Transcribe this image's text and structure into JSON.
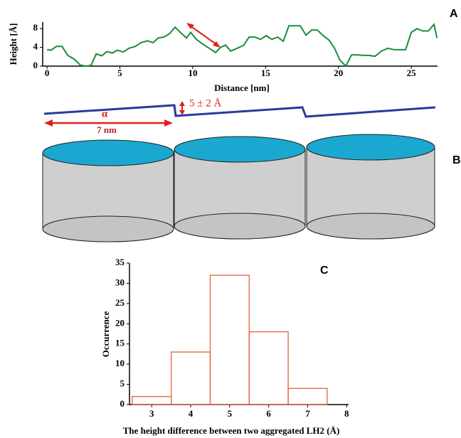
{
  "chart_data": [
    {
      "type": "line",
      "panel_label": "A",
      "xlabel": "Distance [nm]",
      "ylabel": "Height [Å]",
      "xlim": [
        -0.3,
        26.8
      ],
      "ylim": [
        0,
        9.4
      ],
      "xticks": [
        0,
        5,
        10,
        15,
        20,
        25
      ],
      "yticks": [
        0,
        4,
        8
      ],
      "series": [
        {
          "color": "#1a8c3a",
          "x": [
            0,
            0.29,
            0.63,
            1.03,
            1.42,
            1.86,
            2.29,
            2.73,
            3.03,
            3.37,
            3.76,
            4.1,
            4.49,
            4.83,
            5.22,
            5.62,
            6.05,
            6.45,
            6.88,
            7.28,
            7.62,
            8.01,
            8.4,
            8.79,
            9.18,
            9.57,
            9.86,
            10.25,
            10.69,
            11.13,
            11.57,
            11.91,
            12.26,
            12.6,
            13.04,
            13.48,
            13.87,
            14.26,
            14.65,
            15.04,
            15.43,
            15.82,
            16.21,
            16.6,
            16.99,
            17.38,
            17.77,
            18.16,
            18.55,
            18.95,
            19.34,
            19.73,
            20.12,
            20.51,
            20.9,
            21.29,
            21.68,
            22.07,
            22.51,
            22.95,
            23.39,
            23.83,
            24.22,
            24.61,
            25.0,
            25.39,
            25.78,
            26.17,
            26.56,
            26.76
          ],
          "values": [
            3.5,
            3.4,
            4.2,
            4.2,
            2.3,
            1.5,
            0.2,
            0,
            0.2,
            2.6,
            2.2,
            3.1,
            2.8,
            3.4,
            3.0,
            3.8,
            4.2,
            5.0,
            5.4,
            5.0,
            6.0,
            6.2,
            6.9,
            8.3,
            7.1,
            6.0,
            7.2,
            5.7,
            4.7,
            3.8,
            2.9,
            4.0,
            4.5,
            3.2,
            3.8,
            4.4,
            6.2,
            6.2,
            5.7,
            6.5,
            5.7,
            6.2,
            5.3,
            8.6,
            8.6,
            8.6,
            6.6,
            7.7,
            7.7,
            6.5,
            5.6,
            3.8,
            1.2,
            0,
            2.4,
            2.4,
            2.3,
            2.3,
            2.1,
            3.2,
            3.8,
            3.5,
            3.5,
            3.5,
            7.2,
            8.0,
            7.5,
            7.5,
            8.9,
            6.0
          ]
        }
      ]
    },
    {
      "type": "histogram",
      "panel_label": "C",
      "xlabel": "The height difference between two aggregated LH2 (Å)",
      "ylabel": "Occurrence",
      "xlim": [
        2.43,
        8.05
      ],
      "ylim": [
        0,
        35
      ],
      "xticks": [
        3,
        4,
        5,
        6,
        7,
        8
      ],
      "yticks": [
        0,
        5,
        10,
        15,
        20,
        25,
        30,
        35
      ],
      "bins": [
        2.5,
        3.5,
        4.5,
        5.5,
        6.5,
        7.5
      ],
      "values": [
        2,
        13,
        32,
        18,
        4
      ],
      "color": "#e8603c"
    }
  ],
  "diagram": {
    "panel_label": "B",
    "angle_label": "α",
    "width_label": "7 nm",
    "step_label": "5 ± 2 Å"
  }
}
